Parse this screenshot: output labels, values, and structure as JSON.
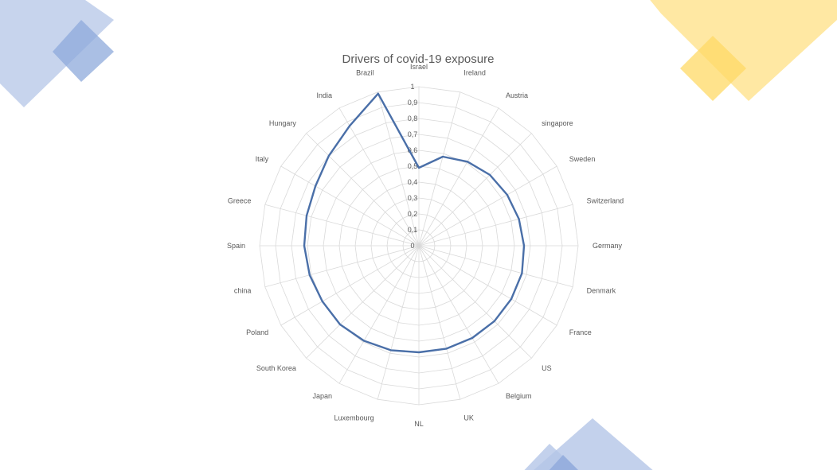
{
  "colors": {
    "series": "#4a6fa8",
    "grid": "#d9d9d9",
    "deco_blue": "#b4c6e7",
    "deco_blue_dark": "#8ea9db",
    "deco_yellow": "#ffe699",
    "deco_yellow_dark": "#ffd966"
  },
  "chart_data": {
    "type": "radar",
    "title": "Drivers of covid-19 exposure",
    "categories": [
      "Israel",
      "Ireland",
      "Austria",
      "singapore",
      "Sweden",
      "Switzerland",
      "Germany",
      "Denmark",
      "France",
      "US",
      "Belgium",
      "UK",
      "NL",
      "Luxembourg",
      "Japan",
      "South Korea",
      "Poland",
      "china",
      "Spain",
      "Greece",
      "Italy",
      "Hungary",
      "India",
      "Brazil"
    ],
    "series": [
      {
        "values": [
          0.49,
          0.58,
          0.61,
          0.63,
          0.64,
          0.65,
          0.66,
          0.67,
          0.67,
          0.67,
          0.67,
          0.67,
          0.67,
          0.68,
          0.69,
          0.7,
          0.7,
          0.71,
          0.72,
          0.73,
          0.75,
          0.8,
          0.87,
          0.99
        ]
      }
    ],
    "rlim": [
      0,
      1
    ],
    "ticks": [
      "0",
      "0,1",
      "0,2",
      "0,3",
      "0,4",
      "0,5",
      "0,6",
      "0,7",
      "0,8",
      "0,9",
      "1"
    ],
    "grid": true,
    "legend": "none"
  }
}
